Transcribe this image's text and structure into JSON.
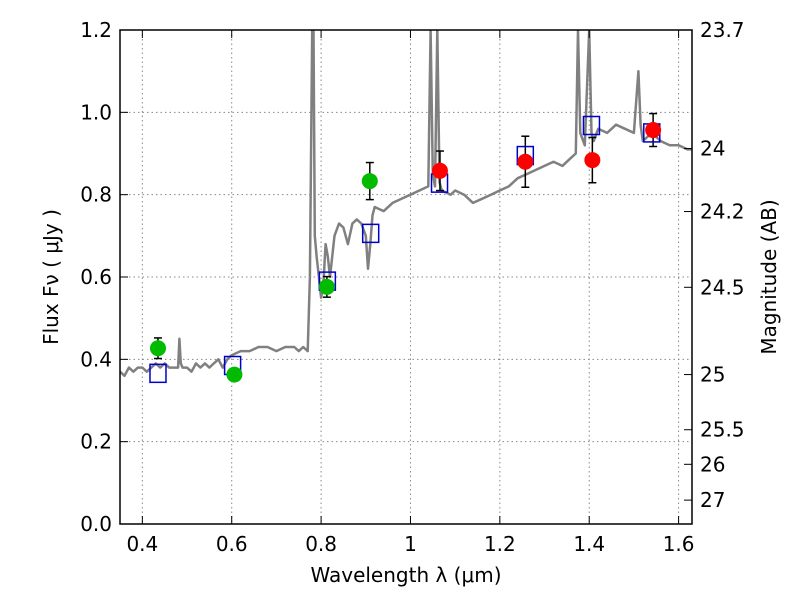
{
  "chart_data": {
    "type": "scatter",
    "xlabel": "Wavelength  λ (μm)",
    "ylabel": "Flux  Fν  ( μJy )",
    "y2label": "Magnitude (AB)",
    "xlim": [
      0.35,
      1.63
    ],
    "ylim": [
      0.0,
      1.2
    ],
    "grid": true,
    "x_ticks": [
      0.4,
      0.6,
      0.8,
      1.0,
      1.2,
      1.4,
      1.6
    ],
    "x_tick_labels": [
      "0.4",
      "0.6",
      "0.8",
      "1",
      "1.2",
      "1.4",
      "1.6"
    ],
    "y_ticks": [
      0.0,
      0.2,
      0.4,
      0.6,
      0.8,
      1.0,
      1.2
    ],
    "y_tick_labels": [
      "0.0",
      "0.2",
      "0.4",
      "0.6",
      "0.8",
      "1.0",
      "1.2"
    ],
    "y2_ticks": [
      {
        "label": "23.7",
        "flux": 1.2
      },
      {
        "label": "24",
        "flux": 0.912
      },
      {
        "label": "24.2",
        "flux": 0.759
      },
      {
        "label": "24.5",
        "flux": 0.575
      },
      {
        "label": "25",
        "flux": 0.363
      },
      {
        "label": "25.5",
        "flux": 0.229
      },
      {
        "label": "26",
        "flux": 0.145
      },
      {
        "label": "27",
        "flux": 0.058
      }
    ],
    "colors": {
      "model": "#808080",
      "model_points": "#0000cc",
      "green_points": "#00bb00",
      "red_points": "#ff0000",
      "errorbars": "#000000",
      "grid": "#888888"
    },
    "series": [
      {
        "kind": "model-spectrum",
        "x": [
          0.35,
          0.36,
          0.37,
          0.38,
          0.39,
          0.4,
          0.41,
          0.42,
          0.43,
          0.44,
          0.45,
          0.46,
          0.47,
          0.48,
          0.483,
          0.486,
          0.49,
          0.5,
          0.51,
          0.52,
          0.53,
          0.54,
          0.55,
          0.56,
          0.57,
          0.58,
          0.59,
          0.6,
          0.62,
          0.64,
          0.66,
          0.68,
          0.7,
          0.72,
          0.74,
          0.75,
          0.76,
          0.77,
          0.775,
          0.78,
          0.783,
          0.786,
          0.79,
          0.795,
          0.8,
          0.805,
          0.81,
          0.815,
          0.82,
          0.83,
          0.84,
          0.85,
          0.86,
          0.87,
          0.88,
          0.89,
          0.9,
          0.905,
          0.91,
          0.915,
          0.92,
          0.94,
          0.96,
          0.98,
          1.0,
          1.02,
          1.04,
          1.045,
          1.05,
          1.055,
          1.06,
          1.065,
          1.07,
          1.09,
          1.1,
          1.12,
          1.14,
          1.16,
          1.18,
          1.2,
          1.22,
          1.24,
          1.26,
          1.28,
          1.3,
          1.32,
          1.34,
          1.36,
          1.37,
          1.375,
          1.38,
          1.39,
          1.4,
          1.405,
          1.41,
          1.42,
          1.44,
          1.46,
          1.48,
          1.5,
          1.51,
          1.515,
          1.52,
          1.53,
          1.54,
          1.55,
          1.56,
          1.58,
          1.6,
          1.62,
          1.63
        ],
        "y": [
          0.37,
          0.36,
          0.38,
          0.37,
          0.38,
          0.38,
          0.37,
          0.38,
          0.39,
          0.38,
          0.39,
          0.38,
          0.38,
          0.38,
          0.45,
          0.39,
          0.38,
          0.38,
          0.37,
          0.39,
          0.38,
          0.39,
          0.38,
          0.39,
          0.4,
          0.38,
          0.4,
          0.41,
          0.42,
          0.42,
          0.43,
          0.43,
          0.42,
          0.43,
          0.43,
          0.42,
          0.43,
          0.42,
          0.6,
          1.2,
          1.2,
          0.7,
          0.65,
          0.6,
          0.55,
          0.58,
          0.68,
          0.65,
          0.6,
          0.7,
          0.73,
          0.72,
          0.68,
          0.73,
          0.74,
          0.73,
          0.7,
          0.62,
          0.68,
          0.75,
          0.77,
          0.76,
          0.78,
          0.79,
          0.8,
          0.81,
          0.82,
          1.2,
          0.85,
          0.82,
          1.2,
          0.83,
          0.81,
          0.8,
          0.81,
          0.8,
          0.78,
          0.79,
          0.8,
          0.81,
          0.82,
          0.84,
          0.85,
          0.86,
          0.87,
          0.88,
          0.87,
          0.89,
          0.9,
          1.2,
          0.95,
          0.92,
          1.2,
          0.95,
          0.93,
          0.96,
          0.95,
          0.97,
          0.96,
          0.95,
          1.1,
          0.97,
          0.93,
          0.94,
          0.95,
          0.94,
          0.93,
          0.92,
          0.92,
          0.91,
          0.91
        ]
      },
      {
        "kind": "model-points",
        "x": [
          0.435,
          0.602,
          0.814,
          0.911,
          1.065,
          1.257,
          1.405,
          1.54
        ],
        "y": [
          0.366,
          0.385,
          0.59,
          0.706,
          0.828,
          0.895,
          0.968,
          0.95
        ]
      },
      {
        "kind": "observed-green",
        "x": [
          0.435,
          0.606,
          0.813,
          0.909
        ],
        "y": [
          0.427,
          0.363,
          0.576,
          0.833
        ],
        "err": [
          0.025,
          0.01,
          0.025,
          0.045
        ]
      },
      {
        "kind": "observed-red",
        "x": [
          1.066,
          1.257,
          1.407,
          1.543
        ],
        "y": [
          0.858,
          0.88,
          0.884,
          0.957
        ],
        "err": [
          0.048,
          0.062,
          0.055,
          0.04
        ]
      }
    ]
  }
}
